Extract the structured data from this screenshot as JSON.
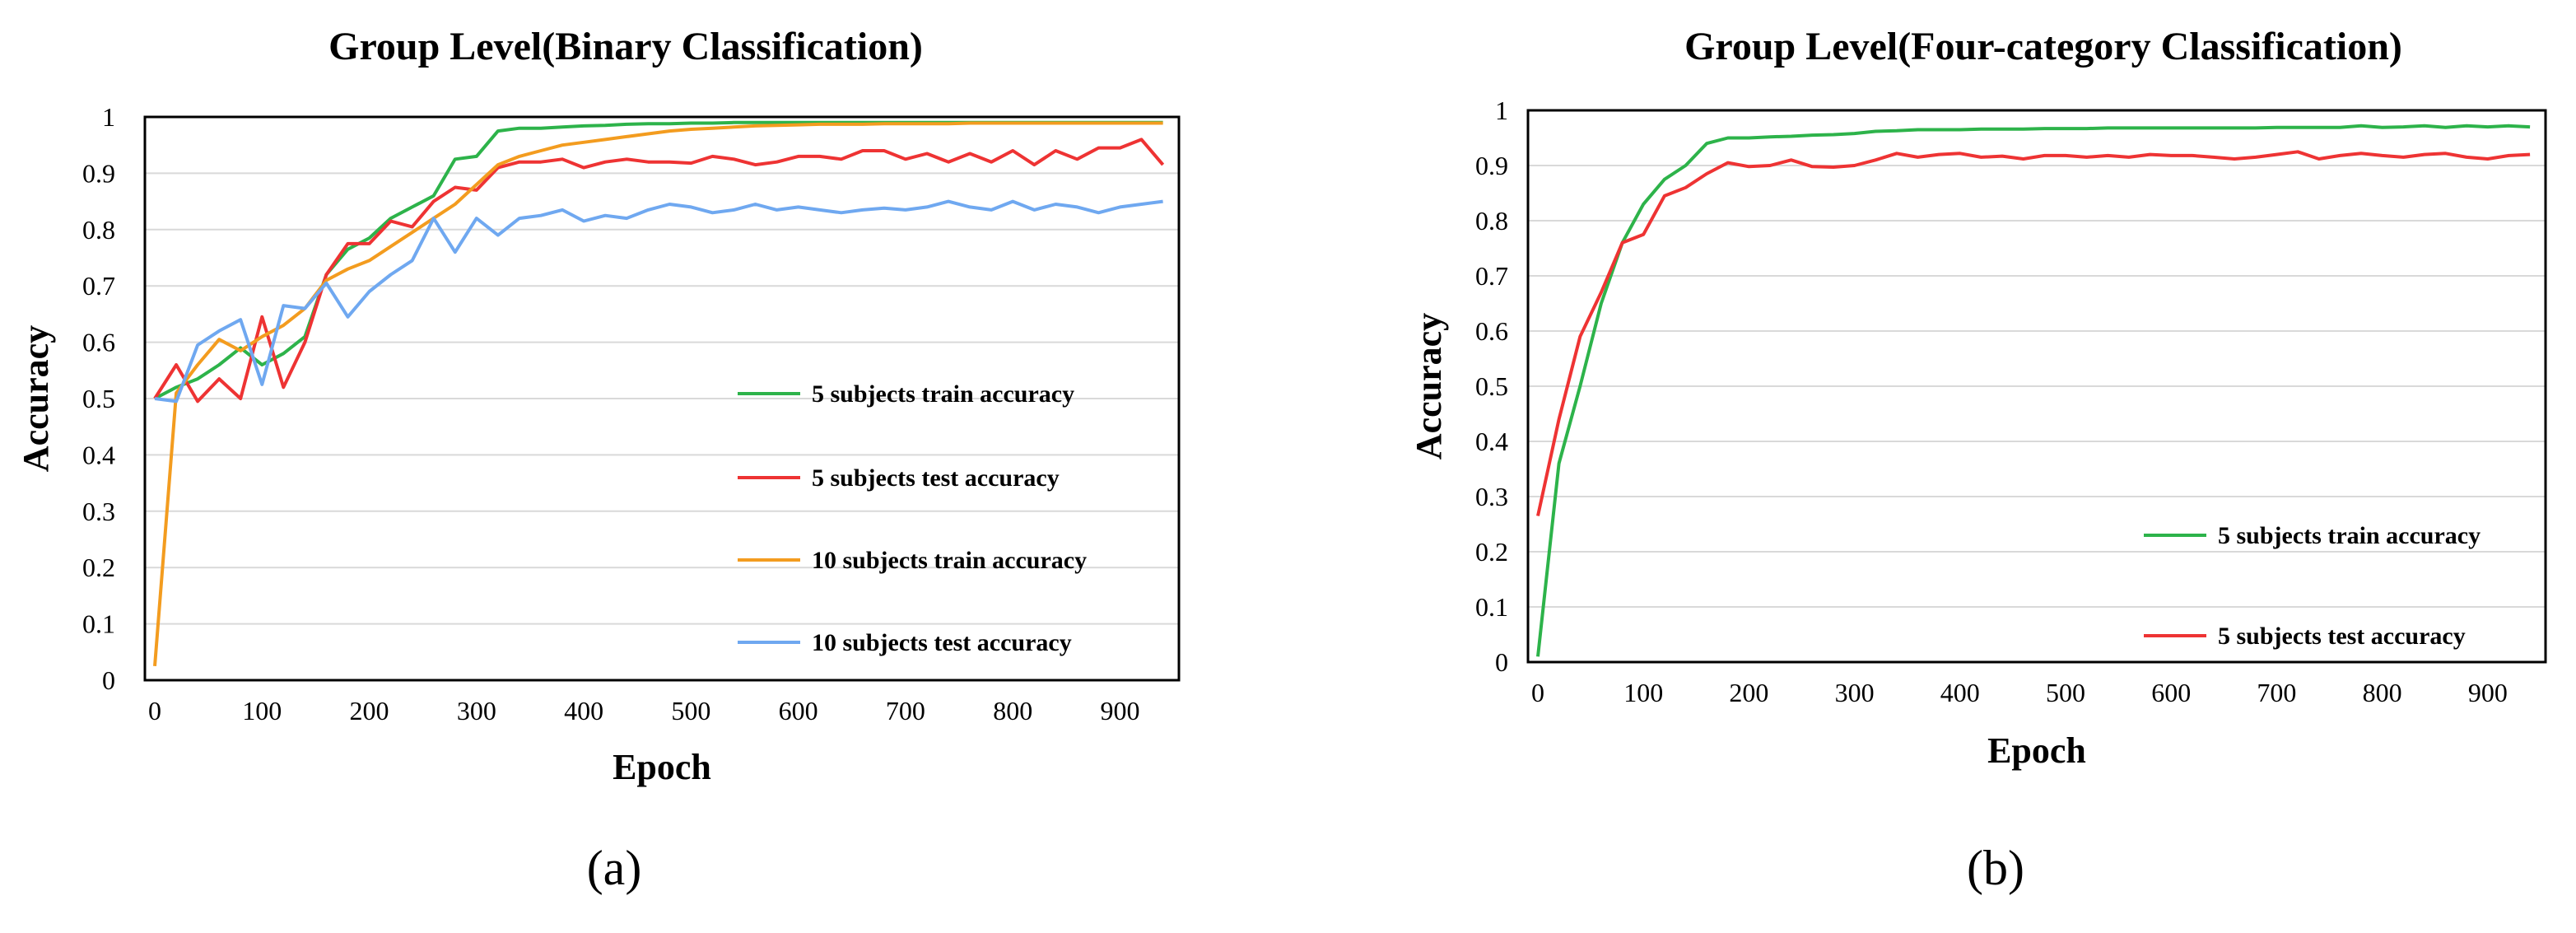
{
  "captions": [
    "(a)",
    "(b)"
  ],
  "chart_data": [
    {
      "type": "line",
      "title": "Group Level(Binary Classification)",
      "xlabel": "Epoch",
      "ylabel": "Accuracy",
      "xlim": [
        0,
        940
      ],
      "ylim": [
        0,
        1
      ],
      "xticks": [
        0,
        100,
        200,
        300,
        400,
        500,
        600,
        700,
        800,
        900
      ],
      "yticks": [
        0,
        0.1,
        0.2,
        0.3,
        0.4,
        0.5,
        0.6,
        0.7,
        0.8,
        0.9,
        1
      ],
      "xtick_labels": [
        "0",
        "100",
        "200",
        "300",
        "400",
        "500",
        "600",
        "700",
        "800",
        "900"
      ],
      "ytick_labels": [
        "0",
        "0.1",
        "0.2",
        "0.3",
        "0.4",
        "0.5",
        "0.6",
        "0.7",
        "0.8",
        "0.9",
        "1"
      ],
      "grid": true,
      "legend_position": "right",
      "x": [
        0,
        20,
        40,
        60,
        80,
        100,
        120,
        140,
        160,
        180,
        200,
        220,
        240,
        260,
        280,
        300,
        320,
        340,
        360,
        380,
        400,
        420,
        440,
        460,
        480,
        500,
        520,
        540,
        560,
        580,
        600,
        620,
        640,
        660,
        680,
        700,
        720,
        740,
        760,
        780,
        800,
        820,
        840,
        860,
        880,
        900,
        920,
        940
      ],
      "series": [
        {
          "name": "5 subjects train accuracy",
          "color": "#2db34a",
          "values": [
            0.5,
            0.52,
            0.535,
            0.56,
            0.59,
            0.56,
            0.58,
            0.61,
            0.72,
            0.765,
            0.785,
            0.82,
            0.84,
            0.86,
            0.925,
            0.93,
            0.975,
            0.98,
            0.98,
            0.982,
            0.984,
            0.985,
            0.987,
            0.988,
            0.988,
            0.989,
            0.989,
            0.99,
            0.99,
            0.99,
            0.99,
            0.99,
            0.99,
            0.99,
            0.99,
            0.99,
            0.99,
            0.99,
            0.99,
            0.99,
            0.99,
            0.99,
            0.99,
            0.99,
            0.99,
            0.99,
            0.99,
            0.99
          ]
        },
        {
          "name": "5 subjects test accuracy",
          "color": "#ee3333",
          "values": [
            0.5,
            0.56,
            0.495,
            0.535,
            0.5,
            0.645,
            0.52,
            0.6,
            0.72,
            0.775,
            0.775,
            0.815,
            0.805,
            0.85,
            0.875,
            0.87,
            0.91,
            0.92,
            0.92,
            0.925,
            0.91,
            0.92,
            0.925,
            0.92,
            0.92,
            0.918,
            0.93,
            0.925,
            0.915,
            0.92,
            0.93,
            0.93,
            0.925,
            0.94,
            0.94,
            0.925,
            0.935,
            0.92,
            0.935,
            0.92,
            0.94,
            0.915,
            0.94,
            0.925,
            0.945,
            0.945,
            0.96,
            0.915
          ]
        },
        {
          "name": "10 subjects train accuracy",
          "color": "#f39c1f",
          "values": [
            0.025,
            0.51,
            0.56,
            0.605,
            0.585,
            0.61,
            0.63,
            0.66,
            0.71,
            0.73,
            0.745,
            0.77,
            0.795,
            0.82,
            0.845,
            0.88,
            0.915,
            0.93,
            0.94,
            0.95,
            0.955,
            0.96,
            0.965,
            0.97,
            0.975,
            0.978,
            0.98,
            0.982,
            0.984,
            0.985,
            0.986,
            0.987,
            0.987,
            0.987,
            0.988,
            0.988,
            0.988,
            0.988,
            0.989,
            0.989,
            0.989,
            0.989,
            0.989,
            0.989,
            0.989,
            0.989,
            0.989,
            0.989
          ]
        },
        {
          "name": "10 subjects test accuracy",
          "color": "#6fa8f0",
          "values": [
            0.5,
            0.495,
            0.595,
            0.62,
            0.64,
            0.525,
            0.665,
            0.66,
            0.705,
            0.645,
            0.69,
            0.72,
            0.745,
            0.82,
            0.76,
            0.82,
            0.79,
            0.82,
            0.825,
            0.835,
            0.815,
            0.825,
            0.82,
            0.835,
            0.845,
            0.84,
            0.83,
            0.835,
            0.845,
            0.835,
            0.84,
            0.835,
            0.83,
            0.835,
            0.838,
            0.835,
            0.84,
            0.85,
            0.84,
            0.835,
            0.85,
            0.835,
            0.845,
            0.84,
            0.83,
            0.84,
            0.845,
            0.85
          ]
        }
      ]
    },
    {
      "type": "line",
      "title": "Group Level(Four-category Classification)",
      "xlabel": "Epoch",
      "ylabel": "Accuracy",
      "xlim": [
        0,
        940
      ],
      "ylim": [
        0,
        1
      ],
      "xticks": [
        0,
        100,
        200,
        300,
        400,
        500,
        600,
        700,
        800,
        900
      ],
      "yticks": [
        0,
        0.1,
        0.2,
        0.3,
        0.4,
        0.5,
        0.6,
        0.7,
        0.8,
        0.9,
        1
      ],
      "xtick_labels": [
        "0",
        "100",
        "200",
        "300",
        "400",
        "500",
        "600",
        "700",
        "800",
        "900"
      ],
      "ytick_labels": [
        "0",
        "0.1",
        "0.2",
        "0.3",
        "0.4",
        "0.5",
        "0.6",
        "0.7",
        "0.8",
        "0.9",
        "1"
      ],
      "grid": true,
      "legend_position": "bottom-right",
      "x": [
        0,
        20,
        40,
        60,
        80,
        100,
        120,
        140,
        160,
        180,
        200,
        220,
        240,
        260,
        280,
        300,
        320,
        340,
        360,
        380,
        400,
        420,
        440,
        460,
        480,
        500,
        520,
        540,
        560,
        580,
        600,
        620,
        640,
        660,
        680,
        700,
        720,
        740,
        760,
        780,
        800,
        820,
        840,
        860,
        880,
        900,
        920,
        940
      ],
      "series": [
        {
          "name": "5 subjects train accuracy",
          "color": "#2db34a",
          "values": [
            0.01,
            0.36,
            0.5,
            0.65,
            0.76,
            0.83,
            0.875,
            0.9,
            0.94,
            0.95,
            0.95,
            0.952,
            0.953,
            0.955,
            0.956,
            0.958,
            0.962,
            0.963,
            0.965,
            0.965,
            0.965,
            0.966,
            0.966,
            0.966,
            0.967,
            0.967,
            0.967,
            0.968,
            0.968,
            0.968,
            0.968,
            0.968,
            0.968,
            0.968,
            0.968,
            0.969,
            0.969,
            0.969,
            0.969,
            0.972,
            0.969,
            0.97,
            0.972,
            0.969,
            0.972,
            0.97,
            0.972,
            0.97
          ]
        },
        {
          "name": "5 subjects test accuracy",
          "color": "#ee3333",
          "values": [
            0.265,
            0.44,
            0.59,
            0.67,
            0.76,
            0.775,
            0.845,
            0.86,
            0.885,
            0.905,
            0.898,
            0.9,
            0.91,
            0.898,
            0.897,
            0.9,
            0.91,
            0.922,
            0.915,
            0.92,
            0.922,
            0.915,
            0.917,
            0.912,
            0.918,
            0.918,
            0.915,
            0.918,
            0.915,
            0.92,
            0.918,
            0.918,
            0.915,
            0.912,
            0.915,
            0.92,
            0.925,
            0.912,
            0.918,
            0.922,
            0.918,
            0.915,
            0.92,
            0.922,
            0.915,
            0.912,
            0.918,
            0.92
          ]
        }
      ]
    }
  ]
}
